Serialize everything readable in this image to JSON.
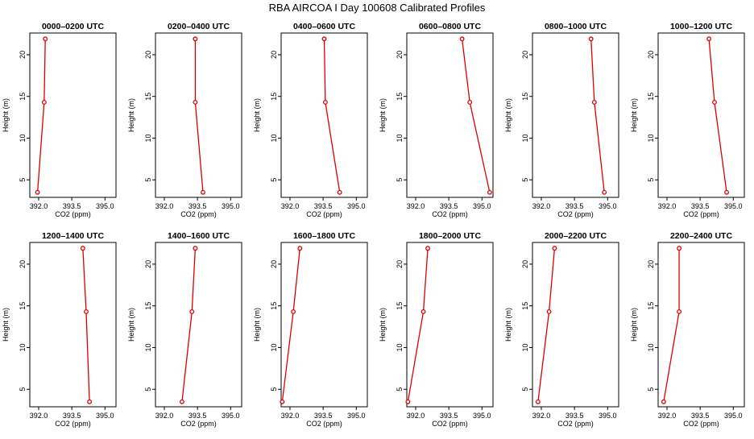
{
  "title": "RBA AIRCOA I  Day 100608  Calibrated Profiles",
  "colors": {
    "line": "#dd0000",
    "axis": "#000000"
  },
  "chart_data": [
    {
      "type": "line",
      "title": "0000–0200 UTC",
      "xlabel": "CO2 (ppm)",
      "ylabel": "Height (m)",
      "xlim": [
        391.6,
        395.5
      ],
      "ylim": [
        2.9,
        22.6
      ],
      "xticks": [
        392.0,
        393.5,
        395.0
      ],
      "xtick_labels": [
        "392.0",
        "393.5",
        "395.0"
      ],
      "yticks": [
        5,
        10,
        15,
        20
      ],
      "ytick_labels": [
        "5",
        "10",
        "15",
        "20"
      ],
      "series": [
        {
          "x": [
            391.95,
            392.25,
            392.3
          ],
          "y": [
            3.5,
            14.3,
            21.9
          ]
        }
      ]
    },
    {
      "type": "line",
      "title": "0200–0400 UTC",
      "xlabel": "CO2 (ppm)",
      "ylabel": "Height (m)",
      "xlim": [
        391.6,
        395.5
      ],
      "ylim": [
        2.9,
        22.6
      ],
      "xticks": [
        392.0,
        393.5,
        395.0
      ],
      "xtick_labels": [
        "392.0",
        "393.5",
        "395.0"
      ],
      "yticks": [
        5,
        10,
        15,
        20
      ],
      "ytick_labels": [
        "5",
        "10",
        "15",
        "20"
      ],
      "series": [
        {
          "x": [
            393.75,
            393.4,
            393.4
          ],
          "y": [
            3.5,
            14.3,
            21.9
          ]
        }
      ]
    },
    {
      "type": "line",
      "title": "0400–0600 UTC",
      "xlabel": "CO2 (ppm)",
      "ylabel": "Height (m)",
      "xlim": [
        391.6,
        395.5
      ],
      "ylim": [
        2.9,
        22.6
      ],
      "xticks": [
        392.0,
        393.5,
        395.0
      ],
      "xtick_labels": [
        "392.0",
        "393.5",
        "395.0"
      ],
      "yticks": [
        5,
        10,
        15,
        20
      ],
      "ytick_labels": [
        "5",
        "10",
        "15",
        "20"
      ],
      "series": [
        {
          "x": [
            394.25,
            393.6,
            393.55
          ],
          "y": [
            3.5,
            14.3,
            21.9
          ]
        }
      ]
    },
    {
      "type": "line",
      "title": "0600–0800 UTC",
      "xlabel": "CO2 (ppm)",
      "ylabel": "Height (m)",
      "xlim": [
        391.6,
        395.5
      ],
      "ylim": [
        2.9,
        22.6
      ],
      "xticks": [
        392.0,
        393.5,
        395.0
      ],
      "xtick_labels": [
        "392.0",
        "393.5",
        "395.0"
      ],
      "yticks": [
        5,
        10,
        15,
        20
      ],
      "ytick_labels": [
        "5",
        "10",
        "15",
        "20"
      ],
      "series": [
        {
          "x": [
            395.35,
            394.45,
            394.1
          ],
          "y": [
            3.5,
            14.3,
            21.9
          ]
        }
      ]
    },
    {
      "type": "line",
      "title": "0800–1000 UTC",
      "xlabel": "CO2 (ppm)",
      "ylabel": "Height (m)",
      "xlim": [
        391.6,
        395.5
      ],
      "ylim": [
        2.9,
        22.6
      ],
      "xticks": [
        392.0,
        393.5,
        395.0
      ],
      "xtick_labels": [
        "392.0",
        "393.5",
        "395.0"
      ],
      "yticks": [
        5,
        10,
        15,
        20
      ],
      "ytick_labels": [
        "5",
        "10",
        "15",
        "20"
      ],
      "series": [
        {
          "x": [
            394.85,
            394.4,
            394.25
          ],
          "y": [
            3.5,
            14.3,
            21.9
          ]
        }
      ]
    },
    {
      "type": "line",
      "title": "1000–1200 UTC",
      "xlabel": "CO2 (ppm)",
      "ylabel": "Height (m)",
      "xlim": [
        391.6,
        395.5
      ],
      "ylim": [
        2.9,
        22.6
      ],
      "xticks": [
        392.0,
        393.5,
        395.0
      ],
      "xtick_labels": [
        "392.0",
        "393.5",
        "395.0"
      ],
      "yticks": [
        5,
        10,
        15,
        20
      ],
      "ytick_labels": [
        "5",
        "10",
        "15",
        "20"
      ],
      "series": [
        {
          "x": [
            394.7,
            394.15,
            393.9
          ],
          "y": [
            3.5,
            14.3,
            21.9
          ]
        }
      ]
    },
    {
      "type": "line",
      "title": "1200–1400 UTC",
      "xlabel": "CO2 (ppm)",
      "ylabel": "Height (m)",
      "xlim": [
        391.6,
        395.5
      ],
      "ylim": [
        2.9,
        22.6
      ],
      "xticks": [
        392.0,
        393.5,
        395.0
      ],
      "xtick_labels": [
        "392.0",
        "393.5",
        "395.0"
      ],
      "yticks": [
        5,
        10,
        15,
        20
      ],
      "ytick_labels": [
        "5",
        "10",
        "15",
        "20"
      ],
      "series": [
        {
          "x": [
            394.3,
            394.15,
            394.0
          ],
          "y": [
            3.5,
            14.3,
            21.9
          ]
        }
      ]
    },
    {
      "type": "line",
      "title": "1400–1600 UTC",
      "xlabel": "CO2 (ppm)",
      "ylabel": "Height (m)",
      "xlim": [
        391.6,
        395.5
      ],
      "ylim": [
        2.9,
        22.6
      ],
      "xticks": [
        392.0,
        393.5,
        395.0
      ],
      "xtick_labels": [
        "392.0",
        "393.5",
        "395.0"
      ],
      "yticks": [
        5,
        10,
        15,
        20
      ],
      "ytick_labels": [
        "5",
        "10",
        "15",
        "20"
      ],
      "series": [
        {
          "x": [
            392.8,
            393.25,
            393.4
          ],
          "y": [
            3.5,
            14.3,
            21.9
          ]
        }
      ]
    },
    {
      "type": "line",
      "title": "1600–1800 UTC",
      "xlabel": "CO2 (ppm)",
      "ylabel": "Height (m)",
      "xlim": [
        391.6,
        395.5
      ],
      "ylim": [
        2.9,
        22.6
      ],
      "xticks": [
        392.0,
        393.5,
        395.0
      ],
      "xtick_labels": [
        "392.0",
        "393.5",
        "395.0"
      ],
      "yticks": [
        5,
        10,
        15,
        20
      ],
      "ytick_labels": [
        "5",
        "10",
        "15",
        "20"
      ],
      "series": [
        {
          "x": [
            391.65,
            392.15,
            392.45
          ],
          "y": [
            3.5,
            14.3,
            21.9
          ]
        }
      ]
    },
    {
      "type": "line",
      "title": "1800–2000 UTC",
      "xlabel": "CO2 (ppm)",
      "ylabel": "Height (m)",
      "xlim": [
        391.6,
        395.5
      ],
      "ylim": [
        2.9,
        22.6
      ],
      "xticks": [
        392.0,
        393.5,
        395.0
      ],
      "xtick_labels": [
        "392.0",
        "393.5",
        "395.0"
      ],
      "yticks": [
        5,
        10,
        15,
        20
      ],
      "ytick_labels": [
        "5",
        "10",
        "15",
        "20"
      ],
      "series": [
        {
          "x": [
            391.65,
            392.35,
            392.55
          ],
          "y": [
            3.5,
            14.3,
            21.9
          ]
        }
      ]
    },
    {
      "type": "line",
      "title": "2000–2200 UTC",
      "xlabel": "CO2 (ppm)",
      "ylabel": "Height (m)",
      "xlim": [
        391.6,
        395.5
      ],
      "ylim": [
        2.9,
        22.6
      ],
      "xticks": [
        392.0,
        393.5,
        395.0
      ],
      "xtick_labels": [
        "392.0",
        "393.5",
        "395.0"
      ],
      "yticks": [
        5,
        10,
        15,
        20
      ],
      "ytick_labels": [
        "5",
        "10",
        "15",
        "20"
      ],
      "series": [
        {
          "x": [
            391.85,
            392.35,
            392.6
          ],
          "y": [
            3.5,
            14.3,
            21.9
          ]
        }
      ]
    },
    {
      "type": "line",
      "title": "2200–2400 UTC",
      "xlabel": "CO2 (ppm)",
      "ylabel": "Height (m)",
      "xlim": [
        391.6,
        395.5
      ],
      "ylim": [
        2.9,
        22.6
      ],
      "xticks": [
        392.0,
        393.5,
        395.0
      ],
      "xtick_labels": [
        "392.0",
        "393.5",
        "395.0"
      ],
      "yticks": [
        5,
        10,
        15,
        20
      ],
      "ytick_labels": [
        "5",
        "10",
        "15",
        "20"
      ],
      "series": [
        {
          "x": [
            391.85,
            392.55,
            392.55
          ],
          "y": [
            3.5,
            14.3,
            21.9
          ]
        }
      ]
    }
  ]
}
